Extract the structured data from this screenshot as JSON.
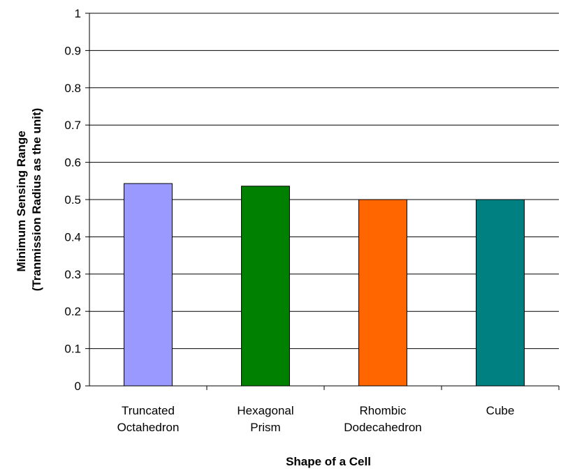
{
  "chart_data": {
    "type": "bar",
    "title": "",
    "xlabel": "Shape of a Cell",
    "ylabel_lines": [
      "Minimum Sensing Range",
      "(Tranmission Radius as the unit)"
    ],
    "categories": [
      [
        "Truncated",
        "Octahedron"
      ],
      [
        "Hexagonal",
        "Prism"
      ],
      [
        "Rhombic",
        "Dodecahedron"
      ],
      [
        "Cube"
      ]
    ],
    "values": [
      0.543,
      0.536,
      0.5,
      0.5
    ],
    "colors": [
      "#9999ff",
      "#008000",
      "#ff6600",
      "#008080"
    ],
    "ylim": [
      0,
      1
    ],
    "yticks": [
      "0",
      "0.1",
      "0.2",
      "0.3",
      "0.4",
      "0.5",
      "0.6",
      "0.7",
      "0.8",
      "0.9",
      "1"
    ],
    "grid": true,
    "legend": "none"
  }
}
